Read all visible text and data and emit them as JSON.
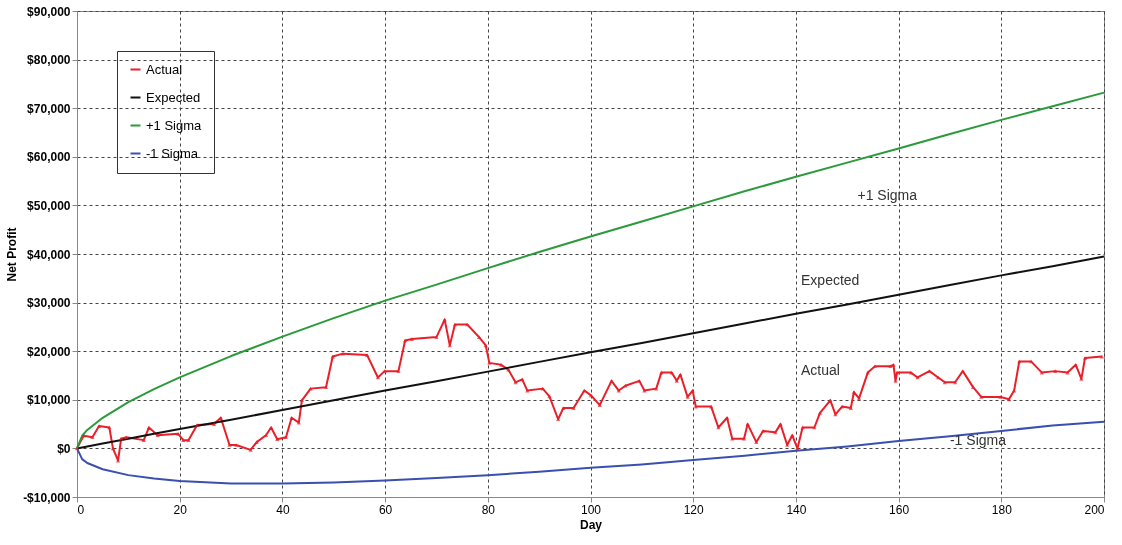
{
  "chart_data": {
    "type": "line",
    "xlabel": "Day",
    "ylabel": "Net Profit",
    "xlim": [
      0,
      200
    ],
    "xticks": [
      0,
      20,
      40,
      60,
      80,
      100,
      120,
      140,
      160,
      180,
      200
    ],
    "ylim": [
      -10000,
      90000
    ],
    "yticks": [
      {
        "value": -10000,
        "label": "-$10,000"
      },
      {
        "value": 0,
        "label": "$0"
      },
      {
        "value": 10000,
        "label": "$10,000"
      },
      {
        "value": 20000,
        "label": "$20,000"
      },
      {
        "value": 30000,
        "label": "$30,000"
      },
      {
        "value": 40000,
        "label": "$40,000"
      },
      {
        "value": 50000,
        "label": "$50,000"
      },
      {
        "value": 60000,
        "label": "$60,000"
      },
      {
        "value": 70000,
        "label": "$70,000"
      },
      {
        "value": 80000,
        "label": "$80,000"
      },
      {
        "value": 90000,
        "label": "$90,000"
      }
    ],
    "grid": true,
    "legend": "top left",
    "line_style": "solid",
    "annotations": [
      "+1 Sigma",
      "Expected",
      "Actual",
      "-1 Sigma"
    ],
    "series": [
      {
        "name": "Actual",
        "color": "#e8202a",
        "marker": "triangle",
        "x": [
          0,
          1.3,
          3,
          4.3,
          6.3,
          7,
          8,
          8.6,
          9.6,
          13,
          14,
          15.7,
          19.7,
          20.7,
          21.7,
          23.4,
          26.7,
          28,
          29.7,
          31,
          33.8,
          35,
          36.8,
          37.8,
          39,
          40.7,
          41.8,
          43.2,
          43.8,
          45.5,
          48.5,
          49.8,
          51.8,
          56.5,
          58.6,
          59.9,
          62.6,
          63.9,
          65.2,
          70,
          71.6,
          72.6,
          73.6,
          76,
          78.3,
          79.6,
          80.3,
          82.6,
          84,
          85.4,
          86.7,
          87.7,
          90.7,
          92,
          93.7,
          94.7,
          96.7,
          98.8,
          100.1,
          101.8,
          104.1,
          105.5,
          106.8,
          109.5,
          110.5,
          112.8,
          113.8,
          115.8,
          116.8,
          117.5,
          118.9,
          119.9,
          120.5,
          123.5,
          124.9,
          126.6,
          127.6,
          129.9,
          130.6,
          132.3,
          133.6,
          136,
          137,
          138.3,
          139.3,
          140.3,
          141.3,
          143.6,
          144.7,
          146.7,
          147.7,
          149,
          150.7,
          151.3,
          152.3,
          154,
          155.4,
          158.4,
          159,
          159.4,
          159.7,
          162.4,
          163.7,
          166,
          167.7,
          169,
          171,
          172.5,
          174.5,
          176.1,
          179.8,
          181.5,
          182.5,
          183.5,
          185.8,
          187.9,
          190.5,
          192.9,
          194.5,
          195.6,
          196.3,
          199.6
        ],
        "values": [
          0,
          2600,
          2300,
          4600,
          4300,
          0,
          -2500,
          2000,
          2300,
          1700,
          4300,
          2700,
          3000,
          1700,
          1700,
          4800,
          5000,
          6300,
          700,
          700,
          -300,
          1300,
          2700,
          4300,
          1900,
          2300,
          6300,
          5300,
          9900,
          12300,
          12600,
          18900,
          19500,
          19200,
          14600,
          15900,
          15900,
          22200,
          22500,
          22900,
          26500,
          21200,
          25500,
          25500,
          22900,
          21200,
          17600,
          17200,
          16200,
          13600,
          14200,
          11900,
          12300,
          10700,
          6000,
          8300,
          8300,
          11900,
          10900,
          8900,
          13900,
          11900,
          12900,
          13900,
          11900,
          12300,
          15600,
          15600,
          13900,
          15200,
          10600,
          11900,
          8600,
          8600,
          4300,
          6300,
          2000,
          2000,
          5000,
          1300,
          3600,
          3300,
          5000,
          700,
          2700,
          0,
          4300,
          4300,
          7300,
          9900,
          7000,
          8600,
          8300,
          11600,
          10300,
          15600,
          16900,
          16900,
          17200,
          13900,
          15600,
          15600,
          14600,
          15900,
          14600,
          13600,
          13600,
          15900,
          12600,
          10600,
          10600,
          10100,
          11900,
          17900,
          17900,
          15600,
          15900,
          15600,
          17200,
          14300,
          18600,
          18900
        ]
      },
      {
        "name": "Expected",
        "color": "#111111",
        "x": [
          0,
          1,
          2,
          5,
          10,
          15,
          20,
          30,
          40,
          50,
          60,
          70,
          80,
          90,
          100,
          110,
          120,
          130,
          140,
          150,
          160,
          170,
          180,
          190,
          200
        ],
        "values": [
          0,
          200,
          400,
          1000,
          2000,
          3000,
          4000,
          5900,
          7900,
          9900,
          11900,
          13800,
          15800,
          17800,
          19800,
          21700,
          23700,
          25700,
          27700,
          29600,
          31600,
          33600,
          35600,
          37500,
          39500
        ]
      },
      {
        "name": "+1 Sigma",
        "color": "#2a9a3a",
        "x": [
          0,
          1,
          2,
          5,
          10,
          15,
          20,
          30,
          40,
          50,
          60,
          70,
          80,
          90,
          100,
          110,
          120,
          130,
          140,
          150,
          160,
          170,
          180,
          190,
          200
        ],
        "values": [
          0,
          2600,
          3800,
          6300,
          9500,
          12200,
          14600,
          19000,
          23000,
          26800,
          30400,
          33700,
          37100,
          40400,
          43600,
          46700,
          49800,
          52900,
          55900,
          58800,
          61700,
          64700,
          67600,
          70400,
          73200
        ]
      },
      {
        "name": "-1 Sigma",
        "color": "#3a4fb0",
        "x": [
          0,
          1,
          2,
          5,
          10,
          15,
          20,
          30,
          40,
          50,
          60,
          70,
          80,
          90,
          100,
          110,
          120,
          130,
          140,
          150,
          160,
          170,
          180,
          190,
          200
        ],
        "values": [
          0,
          -2200,
          -3000,
          -4300,
          -5500,
          -6200,
          -6700,
          -7200,
          -7200,
          -7000,
          -6600,
          -6100,
          -5500,
          -4800,
          -4000,
          -3300,
          -2400,
          -1500,
          -500,
          400,
          1500,
          2500,
          3600,
          4700,
          5500
        ]
      }
    ]
  }
}
